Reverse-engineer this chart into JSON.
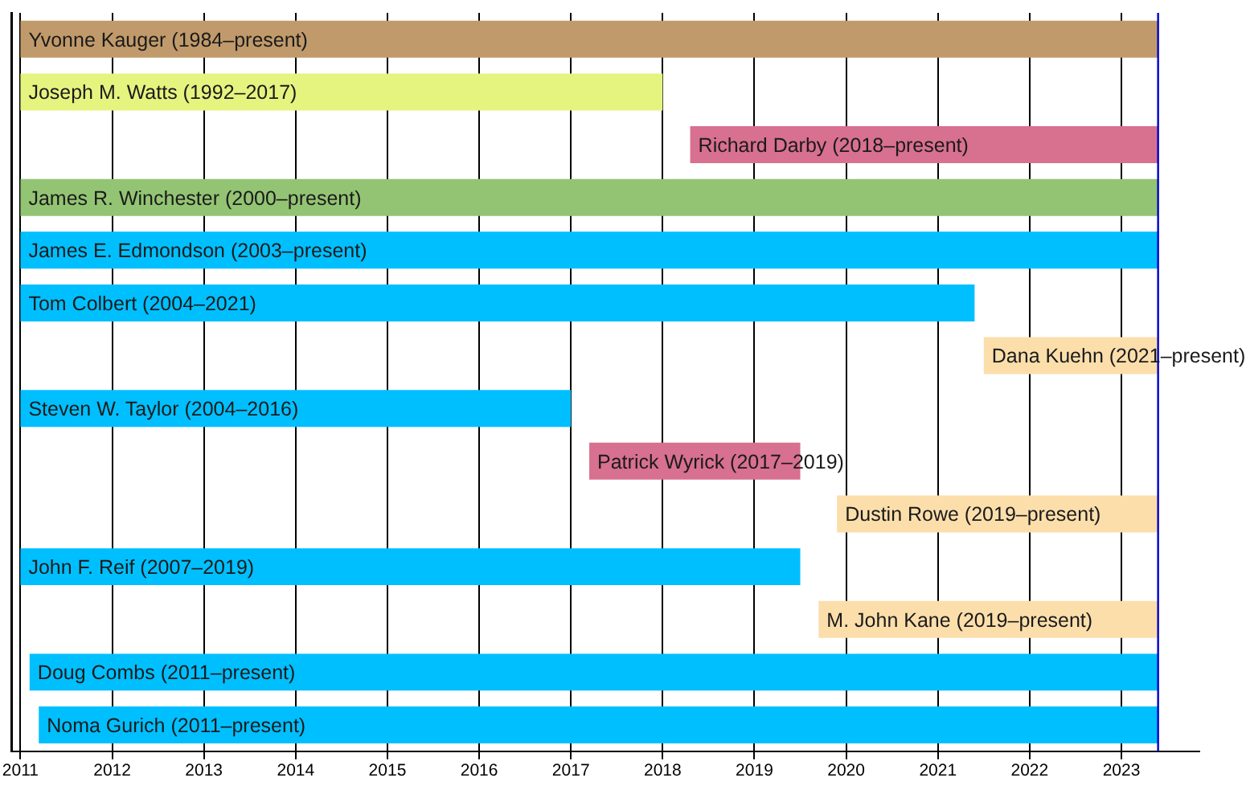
{
  "chart_data": {
    "type": "bar",
    "orientation": "horizontal",
    "categories": [
      "Yvonne Kauger (1984–present)",
      "Joseph M. Watts (1992–2017)",
      "Richard Darby (2018–present)",
      "James R. Winchester (2000–present)",
      "James E. Edmondson (2003–present)",
      "Tom Colbert (2004–2021)",
      "Dana Kuehn (2021–present)",
      "Steven W. Taylor (2004–2016)",
      "Patrick Wyrick (2017–2019)",
      "Dustin Rowe (2019–present)",
      "John F. Reif (2007–2019)",
      "M. John Kane (2019–present)",
      "Doug Combs (2011–present)",
      "Noma Gurich (2011–present)"
    ],
    "base": [
      2011,
      2011,
      2018.3,
      2011,
      2011,
      2011,
      2021.5,
      2011,
      2017.2,
      2019.9,
      2011,
      2019.7,
      2011.1,
      2011.2
    ],
    "values": [
      12.4,
      7,
      5.1,
      12.4,
      12.4,
      10.4,
      1.9,
      6,
      2.3,
      3.5,
      8.5,
      3.7,
      12.3,
      12.2
    ],
    "colors": [
      "#c19a6b",
      "#e5f47f",
      "#d8708f",
      "#93c474",
      "#00bfff",
      "#00bfff",
      "#fcdeab",
      "#00bfff",
      "#d8708f",
      "#fcdeab",
      "#00bfff",
      "#fcdeab",
      "#00bfff",
      "#00bfff"
    ],
    "xlim": [
      2010.9,
      2023.85
    ],
    "xticks": [
      2011,
      2012,
      2013,
      2014,
      2015,
      2016,
      2017,
      2018,
      2019,
      2020,
      2021,
      2022,
      2023
    ],
    "grid": "x",
    "tick_labels": "x",
    "ref_lines": [
      {
        "axis": "x",
        "value": 2023.4,
        "color": "#0000cc"
      }
    ]
  }
}
